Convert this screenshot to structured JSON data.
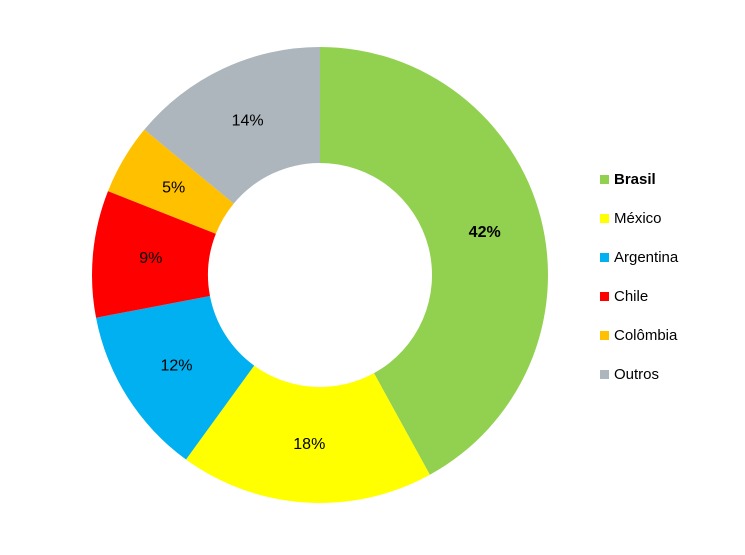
{
  "chart_data": {
    "type": "pie",
    "subtype": "donut",
    "title": "",
    "categories": [
      "Brasil",
      "México",
      "Argentina",
      "Chile",
      "Colômbia",
      "Outros"
    ],
    "values": [
      42,
      18,
      12,
      9,
      5,
      14
    ],
    "data_labels": [
      "42%",
      "18%",
      "12%",
      "9%",
      "5%",
      "14%"
    ],
    "colors": [
      "#92D050",
      "#FFFF00",
      "#00B0F0",
      "#FF0000",
      "#FFC000",
      "#ADB5BD"
    ],
    "emphasized": [
      true,
      false,
      false,
      false,
      false,
      false
    ],
    "legend_entries": [
      "Brasil",
      "México",
      "Argentina",
      "Chile",
      "Colômbia",
      "Outros"
    ],
    "legend_position": "right",
    "start_angle_deg": 0,
    "direction": "clockwise",
    "inner_radius_ratio": 0.49,
    "label_color": "#000000",
    "background_color": "#FFFFFF"
  }
}
